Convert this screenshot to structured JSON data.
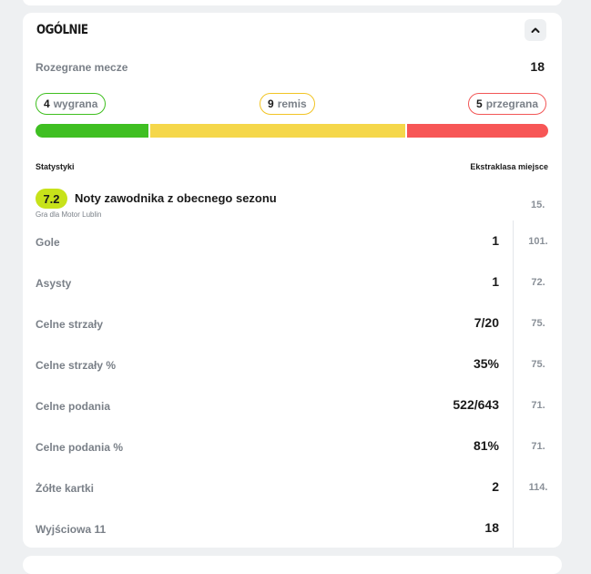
{
  "section": {
    "title": "OGÓLNIE"
  },
  "matches": {
    "label": "Rozegrane mecze",
    "value": "18"
  },
  "results": {
    "win": {
      "count": "4",
      "label": "wygrana"
    },
    "draw": {
      "count": "9",
      "label": "remis"
    },
    "loss": {
      "count": "5",
      "label": "przegrana"
    }
  },
  "colors": {
    "win": "#3fbf22",
    "draw": "#f5d74a",
    "loss": "#f75656",
    "rating": "#c7e21a"
  },
  "headers": {
    "stats": "Statystyki",
    "rank": "Ekstraklasa miejsce"
  },
  "rating": {
    "value": "7.2",
    "label": "Noty zawodnika z obecnego sezonu",
    "subtitle": "Gra dla Motor Lublin",
    "rank": "15."
  },
  "stats": [
    {
      "label": "Gole",
      "value": "1",
      "rank": "101."
    },
    {
      "label": "Asysty",
      "value": "1",
      "rank": "72."
    },
    {
      "label": "Celne strzały",
      "value": "7/20",
      "rank": "75."
    },
    {
      "label": "Celne strzały %",
      "value": "35%",
      "rank": "75."
    },
    {
      "label": "Celne podania",
      "value": "522/643",
      "rank": "71."
    },
    {
      "label": "Celne podania %",
      "value": "81%",
      "rank": "71."
    },
    {
      "label": "Żółte kartki",
      "value": "2",
      "rank": "114."
    },
    {
      "label": "Wyjściowa 11",
      "value": "18",
      "rank": ""
    }
  ]
}
